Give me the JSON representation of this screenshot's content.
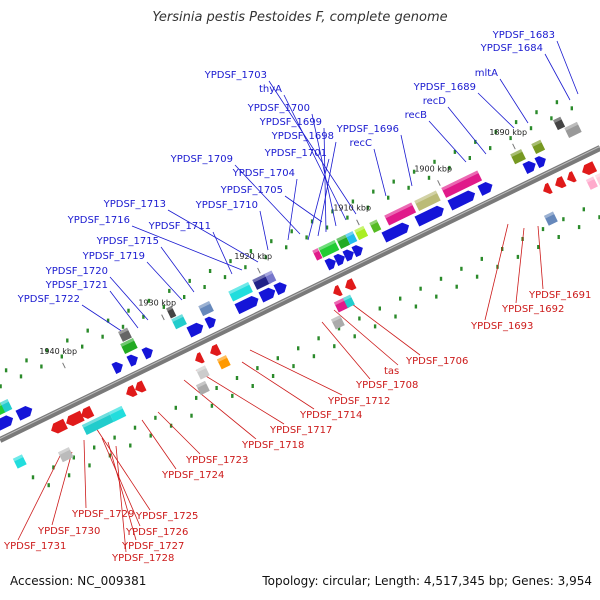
{
  "title": "Yersinia pestis Pestoides F, complete genome",
  "footer": {
    "accession": "Accession: NC_009381",
    "topology": "Topology: circular; Length: 4,517,345 bp; Genes: 3,954"
  },
  "colors": {
    "forward_label": "#1a1ad0",
    "reverse_label": "#cc1a1a",
    "backbone": "#7a7a7a"
  },
  "ticks": [
    "1890 kbp",
    "1900 kbp",
    "1910 kbp",
    "1920 kbp",
    "1930 kbp",
    "1940 kbp"
  ],
  "forward_labels": [
    "YPDSF_1683",
    "YPDSF_1684",
    "mltA",
    "YPDSF_1689",
    "recD",
    "recB",
    "YPDSF_1696",
    "recC",
    "YPDSF_1703",
    "thyA",
    "YPDSF_1700",
    "YPDSF_1699",
    "YPDSF_1698",
    "YPDSF_1701",
    "YPDSF_1709",
    "YPDSF_1704",
    "YPDSF_1705",
    "YPDSF_1713",
    "YPDSF_1710",
    "YPDSF_1716",
    "YPDSF_1711",
    "YPDSF_1715",
    "YPDSF_1719",
    "YPDSF_1720",
    "YPDSF_1721",
    "YPDSF_1722"
  ],
  "reverse_labels": [
    "YPDSF_1691",
    "YPDSF_1692",
    "YPDSF_1693",
    "YPDSF_1706",
    "tas",
    "YPDSF_1708",
    "YPDSF_1712",
    "YPDSF_1714",
    "YPDSF_1717",
    "YPDSF_1718",
    "YPDSF_1723",
    "YPDSF_1724",
    "YPDSF_1725",
    "YPDSF_1726",
    "YPDSF_1727",
    "YPDSF_1728",
    "YPDSF_1729",
    "YPDSF_1730",
    "YPDSF_1731"
  ]
}
